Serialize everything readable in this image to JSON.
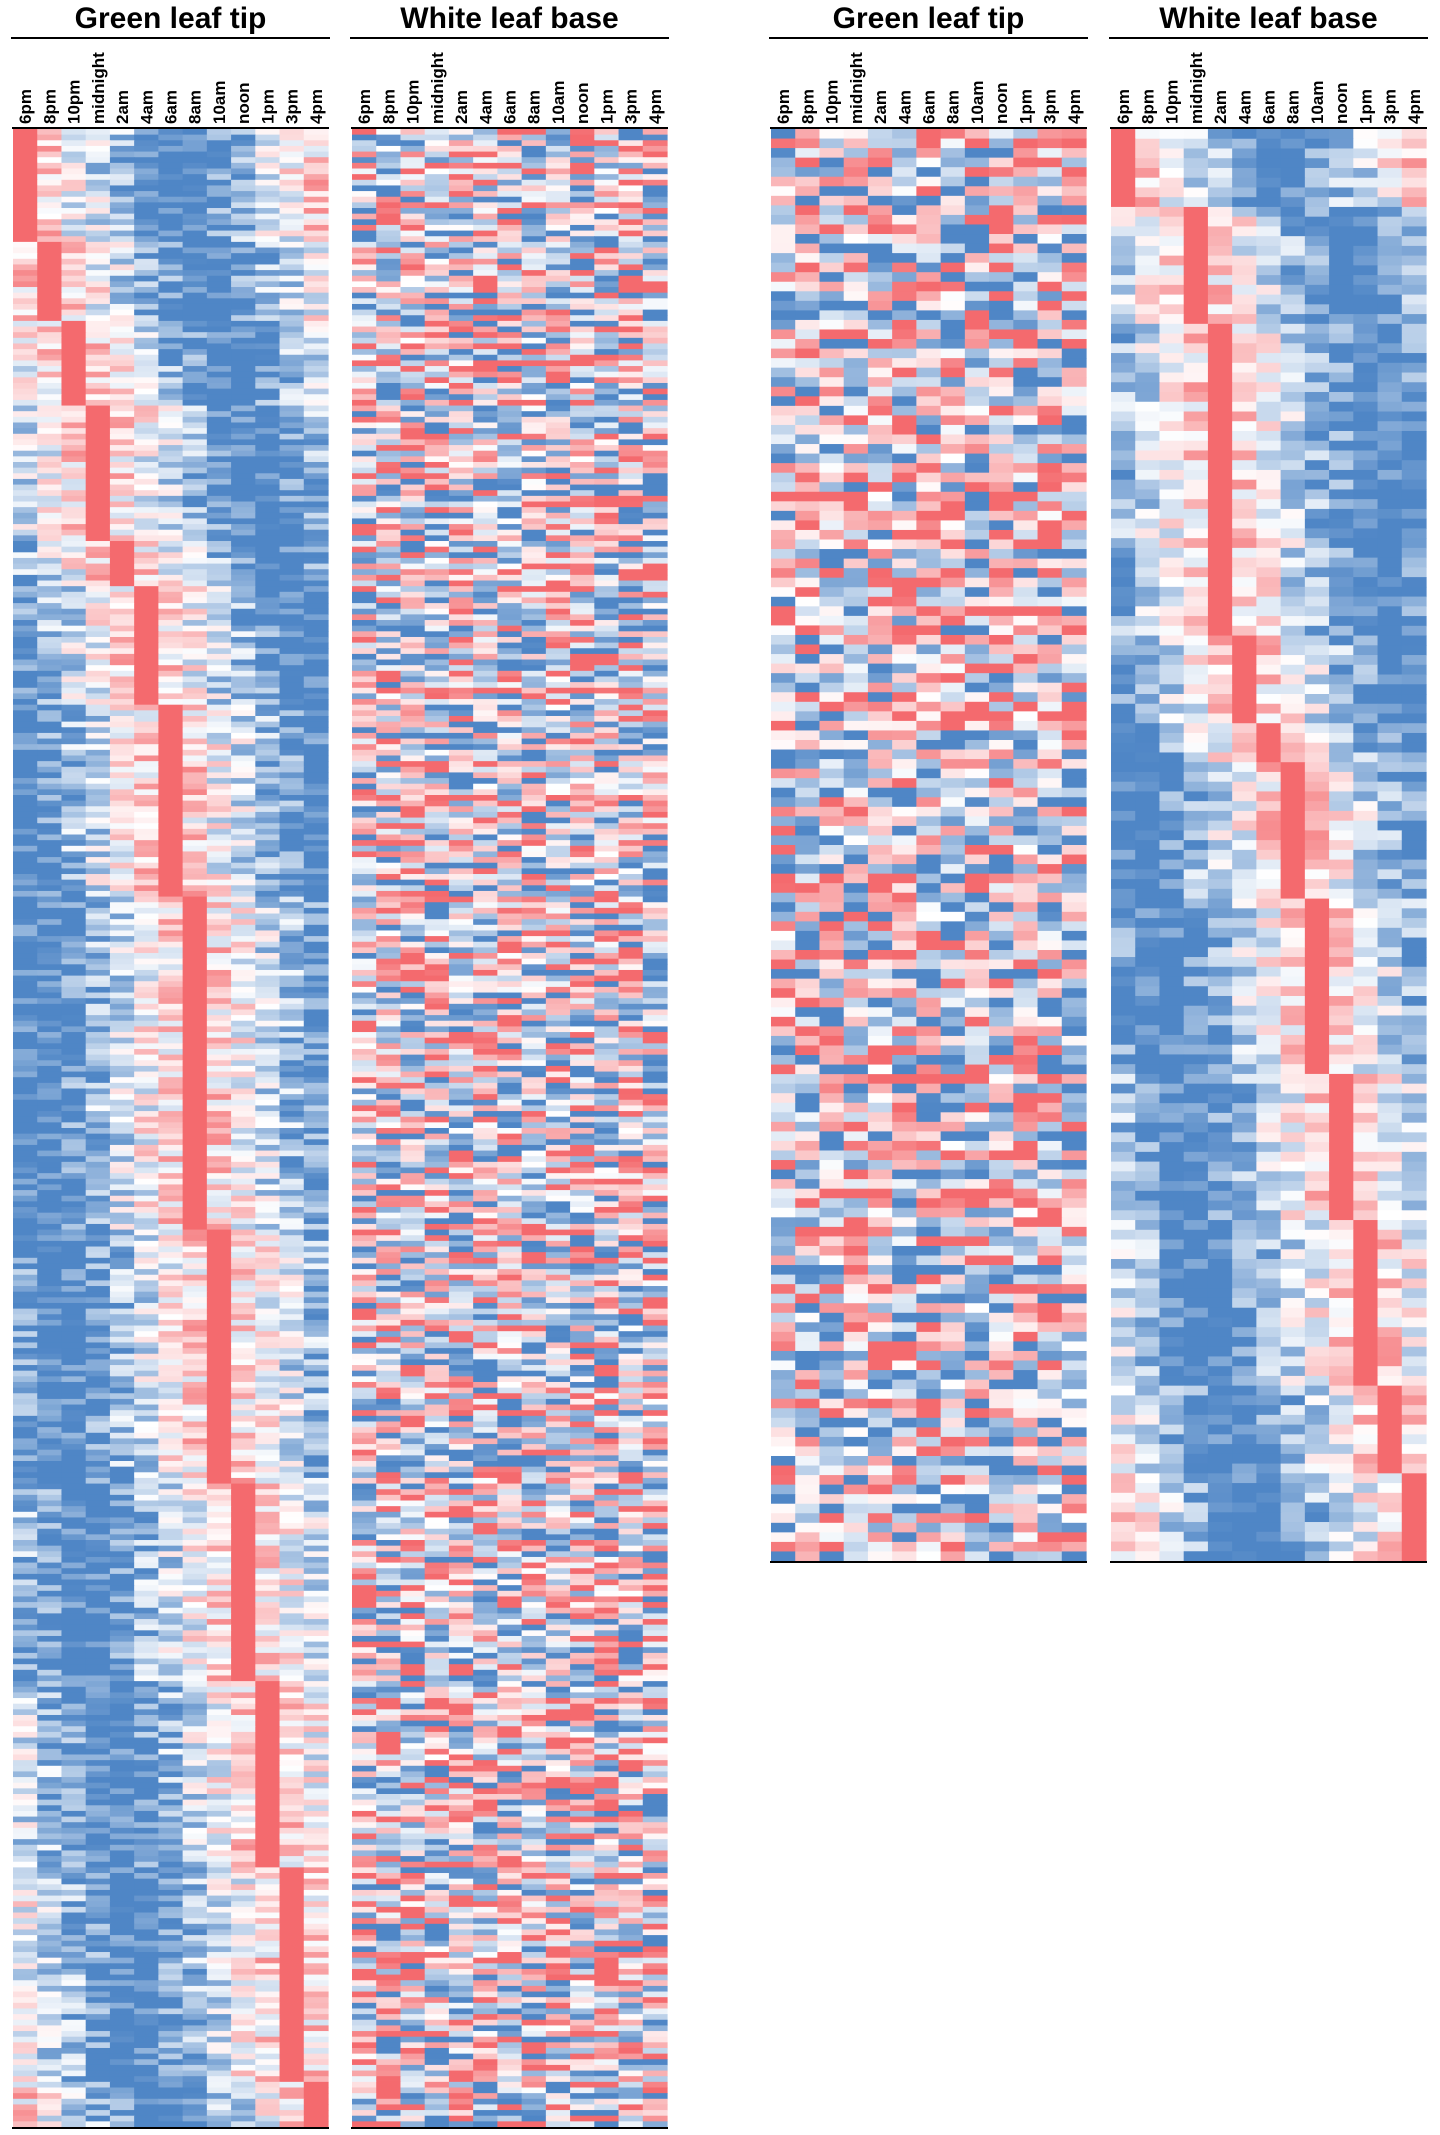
{
  "colors": {
    "high": "#f46a6e",
    "mid": "#ffffff",
    "low": "#4f86c6"
  },
  "time_labels": [
    "6pm",
    "8pm",
    "10pm",
    "midnight",
    "2am",
    "4am",
    "6am",
    "8am",
    "10am",
    "noon",
    "1pm",
    "3pm",
    "4pm"
  ],
  "chart_data": [
    {
      "type": "heatmap",
      "title": "Green leaf tip",
      "xlabel": "",
      "ylabel": "",
      "categories": [
        "6pm",
        "8pm",
        "10pm",
        "midnight",
        "2am",
        "4am",
        "6am",
        "8am",
        "10am",
        "noon",
        "1pm",
        "3pm",
        "4pm"
      ],
      "pattern": "peak-ordered",
      "noise": 0.55,
      "peak_blocks": [
        {
          "peak": "6pm",
          "rows": 20
        },
        {
          "peak": "8pm",
          "rows": 14
        },
        {
          "peak": "10pm",
          "rows": 15
        },
        {
          "peak": "midnight",
          "rows": 24
        },
        {
          "peak": "2am",
          "rows": 8
        },
        {
          "peak": "4am",
          "rows": 21
        },
        {
          "peak": "6am",
          "rows": 34
        },
        {
          "peak": "8am",
          "rows": 59
        },
        {
          "peak": "10am",
          "rows": 45
        },
        {
          "peak": "noon",
          "rows": 35
        },
        {
          "peak": "1pm",
          "rows": 33
        },
        {
          "peak": "3pm",
          "rows": 38
        },
        {
          "peak": "4pm",
          "rows": 8
        }
      ]
    },
    {
      "type": "heatmap",
      "title": "White leaf base",
      "xlabel": "",
      "ylabel": "",
      "categories": [
        "6pm",
        "8pm",
        "10pm",
        "midnight",
        "2am",
        "4am",
        "6am",
        "8am",
        "10am",
        "noon",
        "1pm",
        "3pm",
        "4pm"
      ],
      "pattern": "unordered",
      "rows": 354,
      "value_range": [
        -1,
        1
      ]
    },
    {
      "type": "heatmap",
      "title": "Green leaf tip",
      "xlabel": "",
      "ylabel": "",
      "categories": [
        "6pm",
        "8pm",
        "10pm",
        "midnight",
        "2am",
        "4am",
        "6am",
        "8am",
        "10am",
        "noon",
        "1pm",
        "3pm",
        "4pm"
      ],
      "pattern": "unordered",
      "rows": 150,
      "value_range": [
        -1,
        1
      ]
    },
    {
      "type": "heatmap",
      "title": "White leaf base",
      "xlabel": "",
      "ylabel": "",
      "categories": [
        "6pm",
        "8pm",
        "10pm",
        "midnight",
        "2am",
        "4am",
        "6am",
        "8am",
        "10am",
        "noon",
        "1pm",
        "3pm",
        "4pm"
      ],
      "pattern": "peak-ordered",
      "noise": 0.5,
      "peak_blocks": [
        {
          "peak": "6pm",
          "rows": 8
        },
        {
          "peak": "8pm",
          "rows": 0
        },
        {
          "peak": "10pm",
          "rows": 0
        },
        {
          "peak": "midnight",
          "rows": 12
        },
        {
          "peak": "2am",
          "rows": 32
        },
        {
          "peak": "4am",
          "rows": 9
        },
        {
          "peak": "6am",
          "rows": 4
        },
        {
          "peak": "8am",
          "rows": 14
        },
        {
          "peak": "10am",
          "rows": 18
        },
        {
          "peak": "noon",
          "rows": 15
        },
        {
          "peak": "1pm",
          "rows": 17
        },
        {
          "peak": "3pm",
          "rows": 9
        },
        {
          "peak": "4pm",
          "rows": 9
        }
      ]
    }
  ]
}
